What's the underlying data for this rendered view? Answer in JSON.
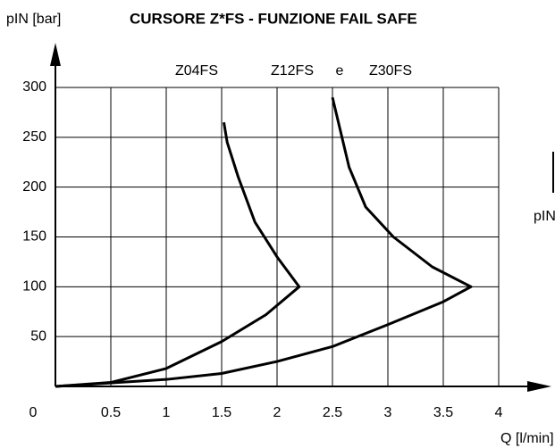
{
  "chart_data": {
    "type": "line",
    "title": "CURSORE Z*FS - FUNZIONE FAIL SAFE",
    "y_label": "pIN [bar]",
    "x_label": "Q [l/min]",
    "annotations": [
      "Z04FS",
      "Z12FS",
      "e",
      "Z30FS"
    ],
    "side_label": "pIN",
    "series": [
      {
        "color": "#000000",
        "x": [
          0,
          0.5,
          1,
          1.5,
          1.9,
          2.2,
          2.0,
          1.8,
          1.65,
          1.55,
          1.52
        ],
        "values": [
          0,
          4,
          18,
          45,
          72,
          100,
          130,
          165,
          210,
          245,
          265
        ]
      },
      {
        "color": "#000000",
        "x": [
          0,
          1,
          1.5,
          2,
          2.5,
          3,
          3.5,
          3.75,
          3.4,
          3.05,
          2.8,
          2.65,
          2.5
        ],
        "values": [
          0,
          7,
          13,
          25,
          40,
          62,
          85,
          100,
          120,
          150,
          180,
          220,
          290
        ]
      }
    ],
    "xlim": [
      0,
      4
    ],
    "ylim": [
      0,
      300
    ],
    "xticks": [
      0,
      0.5,
      1,
      1.5,
      2,
      2.5,
      3,
      3.5,
      4
    ],
    "yticks": [
      50,
      100,
      150,
      200,
      250,
      300
    ],
    "grid": true
  }
}
